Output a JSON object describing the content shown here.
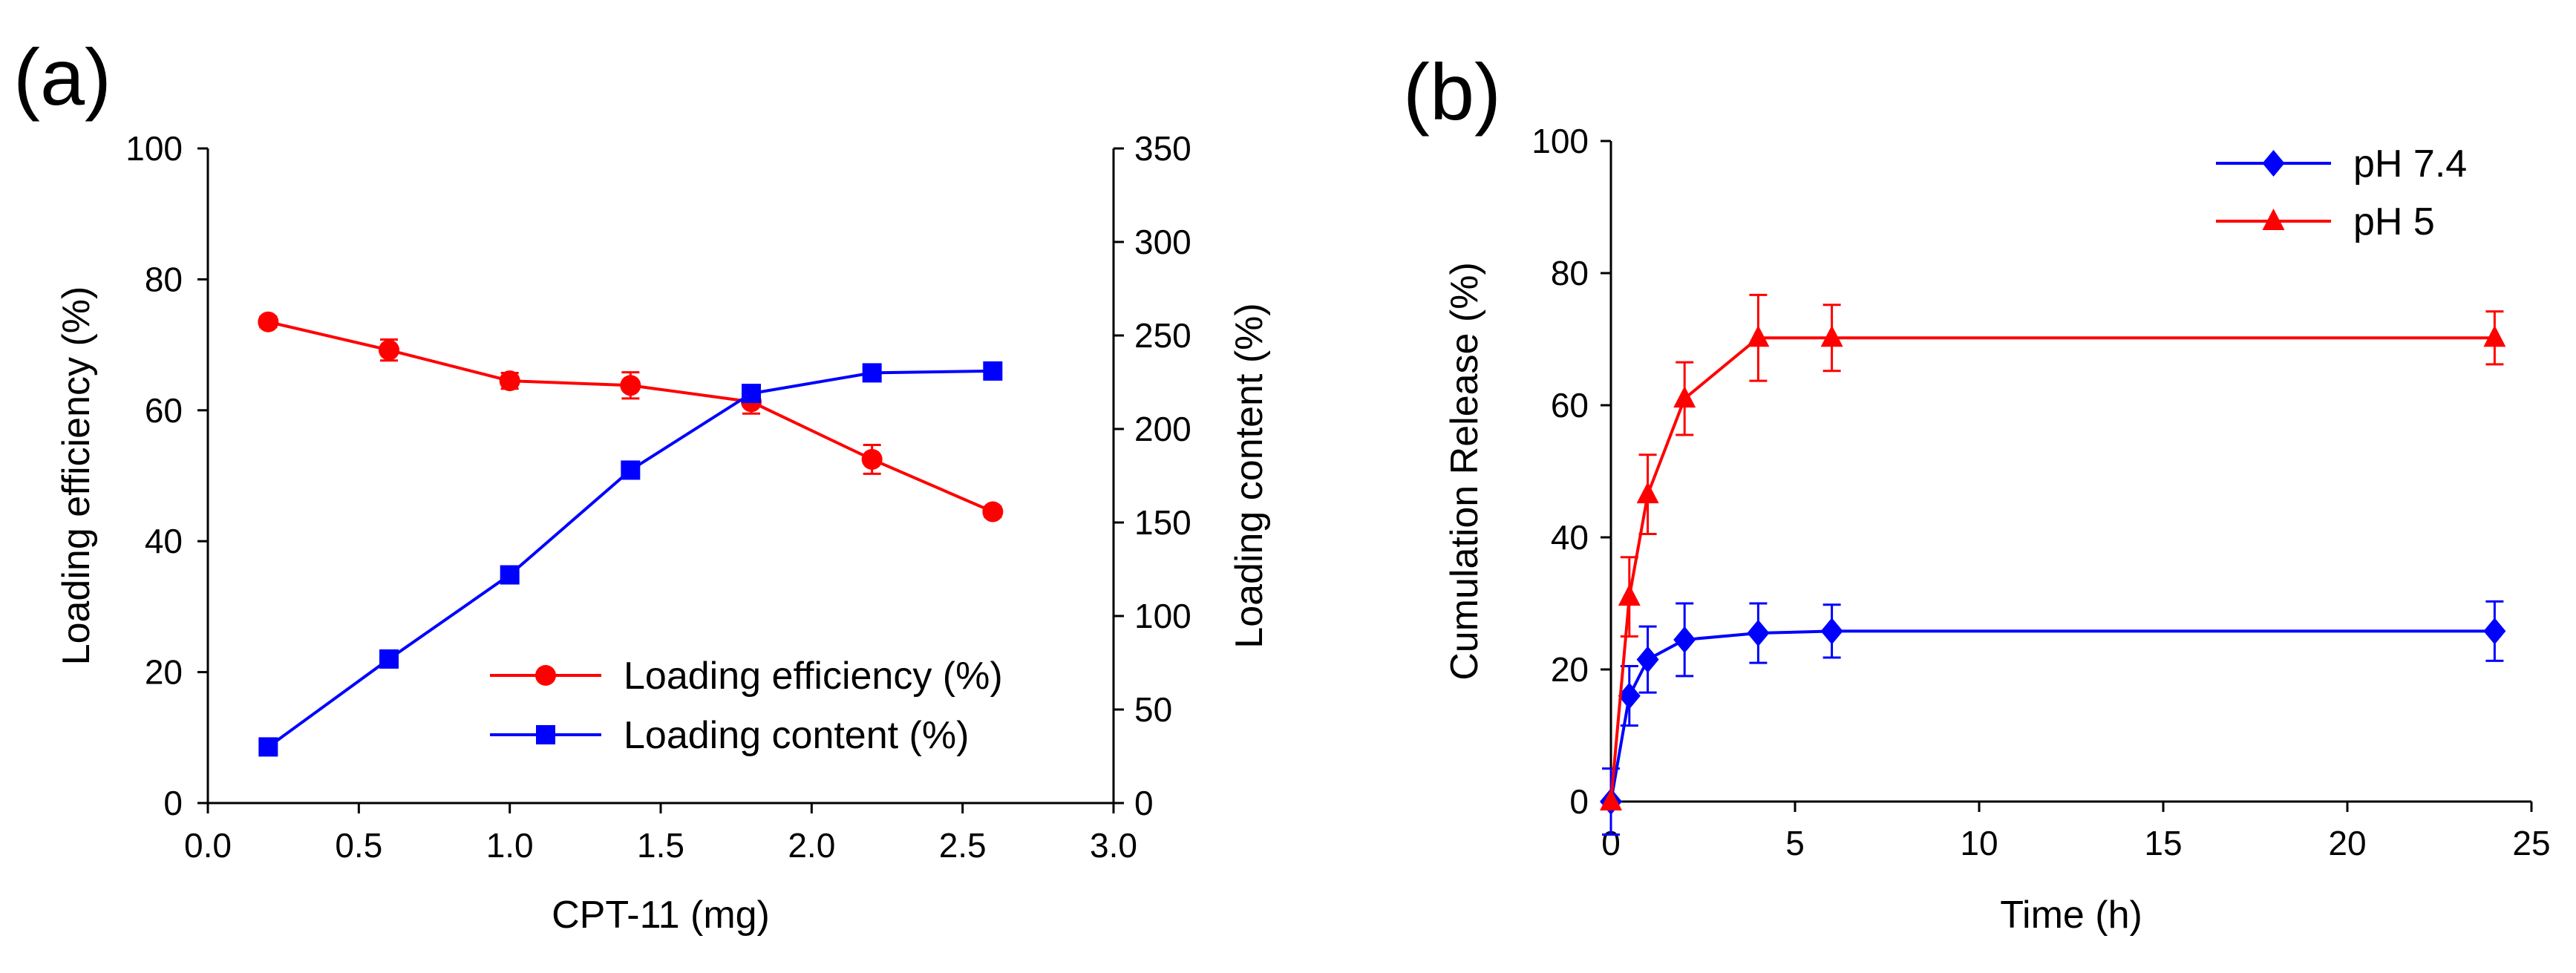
{
  "chart_data": [
    {
      "panel_label": "(a)",
      "type": "line",
      "title": "",
      "xlabel": "CPT-11 (mg)",
      "ylabel": "Loading efficiency (%)",
      "y2label": "Loading content (%)",
      "xlim": [
        0.0,
        3.0
      ],
      "ylim": [
        0,
        100
      ],
      "y2lim": [
        0,
        350
      ],
      "xticks": [
        "0.0",
        "0.5",
        "1.0",
        "1.5",
        "2.0",
        "2.5",
        "3.0"
      ],
      "xtick_values": [
        0.0,
        0.5,
        1.0,
        1.5,
        2.0,
        2.5,
        3.0
      ],
      "yticks": [
        "0",
        "20",
        "40",
        "60",
        "80",
        "100"
      ],
      "ytick_values": [
        0,
        20,
        40,
        60,
        80,
        100
      ],
      "y2ticks": [
        "0",
        "50",
        "100",
        "150",
        "200",
        "250",
        "300",
        "350"
      ],
      "y2tick_values": [
        0,
        50,
        100,
        150,
        200,
        250,
        300,
        350
      ],
      "legend_position": "bottom-right",
      "series": [
        {
          "name": "Loading efficiency (%)",
          "axis": "left",
          "color": "#ff0000",
          "marker": "circle",
          "x": [
            0.2,
            0.6,
            1.0,
            1.4,
            1.8,
            2.2,
            2.6
          ],
          "values": [
            73.5,
            69.2,
            64.5,
            63.8,
            61.3,
            52.5,
            44.5
          ],
          "errors": [
            0.8,
            1.6,
            1.2,
            2.0,
            1.8,
            2.2,
            0.8
          ]
        },
        {
          "name": "Loading content (%)",
          "axis": "right",
          "color": "#0000ff",
          "marker": "square",
          "x": [
            0.2,
            0.6,
            1.0,
            1.4,
            1.8,
            2.2,
            2.6
          ],
          "values": [
            30,
            77,
            122,
            178,
            219,
            230,
            231
          ],
          "errors": [
            0,
            0,
            0,
            0,
            0,
            0,
            0
          ]
        }
      ]
    },
    {
      "panel_label": "(b)",
      "type": "line",
      "title": "",
      "xlabel": "Time (h)",
      "ylabel": "Cumulation Release (%)",
      "xlim": [
        0,
        25
      ],
      "ylim": [
        0,
        100
      ],
      "xticks": [
        "0",
        "5",
        "10",
        "15",
        "20",
        "25"
      ],
      "xtick_values": [
        0,
        5,
        10,
        15,
        20,
        25
      ],
      "yticks": [
        "0",
        "20",
        "40",
        "60",
        "80",
        "100"
      ],
      "ytick_values": [
        0,
        20,
        40,
        60,
        80,
        100
      ],
      "legend_position": "top-right",
      "series": [
        {
          "name": "pH 7.4",
          "color": "#0000ff",
          "marker": "diamond",
          "x": [
            0,
            0.5,
            1,
            2,
            4,
            6,
            24
          ],
          "values": [
            0,
            16,
            21.5,
            24.5,
            25.5,
            25.8,
            25.8
          ],
          "errors": [
            5,
            4.5,
            5,
            5.5,
            4.5,
            4,
            4.5
          ]
        },
        {
          "name": "pH 5",
          "color": "#ff0000",
          "marker": "triangle",
          "x": [
            0,
            0.5,
            1,
            2,
            4,
            6,
            24
          ],
          "values": [
            0,
            31,
            46.5,
            61,
            70.2,
            70.2,
            70.2
          ],
          "errors": [
            0,
            6,
            6,
            5.5,
            6.5,
            5,
            4
          ]
        }
      ]
    }
  ]
}
